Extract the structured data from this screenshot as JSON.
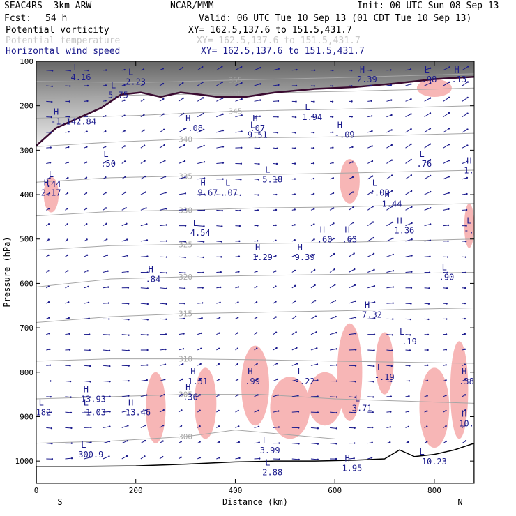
{
  "header": {
    "model": "SEAC4RS  3km ARW",
    "org": "NCAR/MMM",
    "init": "Init: 00 UTC Sun 08 Sep 13",
    "fcst_label": "Fcst:",
    "fcst_value": "54 h",
    "valid": "Valid: 06 UTC Tue 10 Sep 13 (01 CDT Tue 10 Sep 13)",
    "fields": [
      {
        "label": "Potential vorticity",
        "xy": "XY= 162.5,137.6 to 151.5,431.7",
        "color": "#000000"
      },
      {
        "label": "Potential temperature",
        "xy": "XY= 162.5,137.6 to 151.5,431.7",
        "color": "#c8c8c8"
      },
      {
        "label": "Horizontal wind speed",
        "xy": "XY= 162.5,137.6 to 151.5,431.7",
        "color": "#1a1a8c"
      }
    ]
  },
  "chart_data": {
    "type": "cross-section",
    "xlabel": "Distance (km)",
    "ylabel": "Pressure (hPa)",
    "xlim": [
      0,
      880
    ],
    "ylim": [
      1050,
      100
    ],
    "x_ticks": [
      0,
      200,
      400,
      600,
      800
    ],
    "y_ticks": [
      100,
      200,
      300,
      400,
      500,
      600,
      700,
      800,
      900,
      1000
    ],
    "end_labels": {
      "left": "S",
      "right": "N"
    },
    "colors": {
      "pv_fill": "#f7b6b6",
      "pv_contour": "#3a0a30",
      "theta": "#a6a6a6",
      "wind": "#1a1a8c",
      "terrain": "#000000"
    },
    "theta_isentropes": [
      {
        "label": "355",
        "points": [
          [
            0,
            145
          ],
          [
            200,
            148
          ],
          [
            400,
            142
          ],
          [
            600,
            137
          ],
          [
            880,
            128
          ]
        ]
      },
      {
        "label": "350",
        "points": [
          [
            0,
            185
          ],
          [
            200,
            176
          ],
          [
            400,
            172
          ],
          [
            600,
            168
          ],
          [
            880,
            160
          ]
        ]
      },
      {
        "label": "345",
        "points": [
          [
            0,
            228
          ],
          [
            200,
            222
          ],
          [
            400,
            212
          ],
          [
            600,
            208
          ],
          [
            880,
            200
          ]
        ]
      },
      {
        "label": "340",
        "points": [
          [
            0,
            292
          ],
          [
            150,
            282
          ],
          [
            300,
            275
          ],
          [
            450,
            272
          ],
          [
            600,
            270
          ],
          [
            880,
            262
          ]
        ]
      },
      {
        "label": "335",
        "points": [
          [
            0,
            372
          ],
          [
            150,
            362
          ],
          [
            300,
            358
          ],
          [
            450,
            355
          ],
          [
            600,
            352
          ],
          [
            880,
            345
          ]
        ]
      },
      {
        "label": "330",
        "points": [
          [
            0,
            448
          ],
          [
            150,
            438
          ],
          [
            300,
            435
          ],
          [
            450,
            430
          ],
          [
            600,
            428
          ],
          [
            880,
            420
          ]
        ]
      },
      {
        "label": "325",
        "points": [
          [
            0,
            525
          ],
          [
            150,
            515
          ],
          [
            300,
            512
          ],
          [
            450,
            510
          ],
          [
            600,
            508
          ],
          [
            880,
            500
          ]
        ]
      },
      {
        "label": "320",
        "points": [
          [
            0,
            608
          ],
          [
            150,
            590
          ],
          [
            300,
            585
          ],
          [
            450,
            582
          ],
          [
            600,
            580
          ],
          [
            880,
            575
          ]
        ]
      },
      {
        "label": "315",
        "points": [
          [
            0,
            688
          ],
          [
            150,
            675
          ],
          [
            300,
            668
          ],
          [
            450,
            665
          ],
          [
            600,
            662
          ],
          [
            880,
            655
          ]
        ]
      },
      {
        "label": "310",
        "points": [
          [
            0,
            775
          ],
          [
            150,
            770
          ],
          [
            300,
            770
          ],
          [
            450,
            772
          ],
          [
            600,
            775
          ],
          [
            880,
            780
          ]
        ]
      },
      {
        "label": "305",
        "points": [
          [
            0,
            860
          ],
          [
            150,
            855
          ],
          [
            300,
            850
          ],
          [
            450,
            850
          ],
          [
            600,
            860
          ],
          [
            880,
            870
          ]
        ]
      },
      {
        "label": "300",
        "points": [
          [
            0,
            960
          ],
          [
            150,
            955
          ],
          [
            300,
            945
          ],
          [
            400,
            930
          ],
          [
            500,
            940
          ],
          [
            600,
            950
          ]
        ]
      }
    ],
    "pv_contour_2pvu": [
      [
        0,
        290
      ],
      [
        40,
        250
      ],
      [
        80,
        230
      ],
      [
        130,
        205
      ],
      [
        170,
        175
      ],
      [
        210,
        170
      ],
      [
        250,
        180
      ],
      [
        290,
        170
      ],
      [
        330,
        175
      ],
      [
        365,
        180
      ],
      [
        420,
        180
      ],
      [
        480,
        170
      ],
      [
        560,
        162
      ],
      [
        640,
        158
      ],
      [
        720,
        150
      ],
      [
        800,
        140
      ],
      [
        880,
        135
      ]
    ],
    "pv_shaded_regions": [
      {
        "cx": 440,
        "cy": 830,
        "rx": 28,
        "ry": 90
      },
      {
        "cx": 510,
        "cy": 880,
        "rx": 40,
        "ry": 70
      },
      {
        "cx": 580,
        "cy": 860,
        "rx": 35,
        "ry": 60
      },
      {
        "cx": 630,
        "cy": 800,
        "rx": 25,
        "ry": 110
      },
      {
        "cx": 700,
        "cy": 780,
        "rx": 18,
        "ry": 70
      },
      {
        "cx": 800,
        "cy": 880,
        "rx": 30,
        "ry": 90
      },
      {
        "cx": 850,
        "cy": 840,
        "rx": 18,
        "ry": 110
      },
      {
        "cx": 340,
        "cy": 870,
        "rx": 22,
        "ry": 80
      },
      {
        "cx": 240,
        "cy": 880,
        "rx": 20,
        "ry": 80
      },
      {
        "cx": 630,
        "cy": 370,
        "rx": 20,
        "ry": 50
      },
      {
        "cx": 870,
        "cy": 470,
        "rx": 10,
        "ry": 50
      },
      {
        "cx": 30,
        "cy": 400,
        "rx": 15,
        "ry": 40
      },
      {
        "cx": 800,
        "cy": 160,
        "rx": 35,
        "ry": 20
      }
    ],
    "max_min_labels": [
      {
        "kind": "H",
        "value": "2.39",
        "x": 650,
        "y": 130
      },
      {
        "kind": "L",
        "value": "4.16",
        "x": 75,
        "y": 125
      },
      {
        "kind": "L",
        "value": "2.23",
        "x": 185,
        "y": 135
      },
      {
        "kind": "L",
        "value": "5.75",
        "x": 150,
        "y": 165
      },
      {
        "kind": "H",
        "value": "-1.142.84",
        "x": 35,
        "y": 225
      },
      {
        "kind": "L",
        "value": "1.94",
        "x": 540,
        "y": 215
      },
      {
        "kind": "H",
        "value": "-.08",
        "x": 300,
        "y": 240
      },
      {
        "kind": "H",
        "value": ".07",
        "x": 435,
        "y": 240
      },
      {
        "kind": "L",
        "value": "9.51",
        "x": 430,
        "y": 255
      },
      {
        "kind": "H",
        "value": "-.09",
        "x": 605,
        "y": 255
      },
      {
        "kind": "L",
        "value": ".98",
        "x": 780,
        "y": 130
      },
      {
        "kind": "H",
        "value": ".13",
        "x": 840,
        "y": 130
      },
      {
        "kind": "L",
        "value": ".50",
        "x": 135,
        "y": 320
      },
      {
        "kind": "L",
        "value": ".76",
        "x": 770,
        "y": 320
      },
      {
        "kind": "H",
        "value": "1.2",
        "x": 865,
        "y": 335
      },
      {
        "kind": "L",
        "value": "5.18",
        "x": 460,
        "y": 355
      },
      {
        "kind": "L",
        "value": ".44",
        "x": 25,
        "y": 365
      },
      {
        "kind": "H",
        "value": "2.17",
        "x": 15,
        "y": 385
      },
      {
        "kind": "H",
        "value": "9.67",
        "x": 330,
        "y": 385
      },
      {
        "kind": "L",
        "value": ".07",
        "x": 380,
        "y": 385
      },
      {
        "kind": "L",
        "value": "-.03",
        "x": 675,
        "y": 385
      },
      {
        "kind": "H",
        "value": "1.44",
        "x": 700,
        "y": 410
      },
      {
        "kind": "L",
        "value": "4.54",
        "x": 315,
        "y": 475
      },
      {
        "kind": "H",
        "value": "1.36",
        "x": 725,
        "y": 470
      },
      {
        "kind": "L",
        "value": "-.9",
        "x": 865,
        "y": 470
      },
      {
        "kind": "H",
        "value": ".60",
        "x": 570,
        "y": 490
      },
      {
        "kind": "H",
        "value": ".63",
        "x": 620,
        "y": 490
      },
      {
        "kind": "H",
        "value": "1.29",
        "x": 440,
        "y": 530
      },
      {
        "kind": "H",
        "value": "9.39",
        "x": 525,
        "y": 530
      },
      {
        "kind": "H",
        "value": ".84",
        "x": 225,
        "y": 580
      },
      {
        "kind": "L",
        "value": ".90",
        "x": 815,
        "y": 575
      },
      {
        "kind": "H",
        "value": "7.32",
        "x": 660,
        "y": 660
      },
      {
        "kind": "L",
        "value": "-.19",
        "x": 730,
        "y": 720
      },
      {
        "kind": "L",
        "value": "-.19",
        "x": 685,
        "y": 800
      },
      {
        "kind": "L",
        "value": "-.22",
        "x": 525,
        "y": 810
      },
      {
        "kind": "H",
        "value": "1.51",
        "x": 310,
        "y": 810
      },
      {
        "kind": "H",
        "value": ".99",
        "x": 425,
        "y": 810
      },
      {
        "kind": "H",
        "value": ".38",
        "x": 855,
        "y": 810
      },
      {
        "kind": "H",
        "value": ".36",
        "x": 300,
        "y": 845
      },
      {
        "kind": "H",
        "value": "13.93",
        "x": 95,
        "y": 850
      },
      {
        "kind": "L",
        "value": "182",
        "x": 5,
        "y": 880
      },
      {
        "kind": "L",
        "value": "-1.03",
        "x": 95,
        "y": 880
      },
      {
        "kind": "H",
        "value": "13.46",
        "x": 185,
        "y": 880
      },
      {
        "kind": "L",
        "value": "3.71",
        "x": 640,
        "y": 870
      },
      {
        "kind": "H",
        "value": "10.9",
        "x": 855,
        "y": 905
      },
      {
        "kind": "L",
        "value": "3.99",
        "x": 455,
        "y": 965
      },
      {
        "kind": "L",
        "value": "300.9",
        "x": 90,
        "y": 975
      },
      {
        "kind": "L",
        "value": "-10.23",
        "x": 770,
        "y": 990
      },
      {
        "kind": "L",
        "value": "2.88",
        "x": 460,
        "y": 1015
      },
      {
        "kind": "H",
        "value": "1.95",
        "x": 620,
        "y": 1005
      }
    ],
    "surface_pressure": [
      [
        0,
        1012
      ],
      [
        100,
        1012
      ],
      [
        200,
        1011
      ],
      [
        300,
        1007
      ],
      [
        400,
        1002
      ],
      [
        480,
        1000
      ],
      [
        560,
        1000
      ],
      [
        640,
        998
      ],
      [
        700,
        995
      ],
      [
        730,
        975
      ],
      [
        760,
        990
      ],
      [
        800,
        985
      ],
      [
        840,
        975
      ],
      [
        880,
        960
      ]
    ]
  }
}
